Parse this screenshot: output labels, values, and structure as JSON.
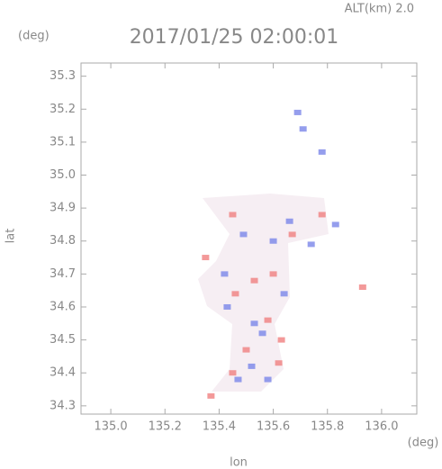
{
  "chart_data": {
    "type": "scatter",
    "title": "2017/01/25 02:00:01",
    "subtitle": "ALT(km) 2.0",
    "x_label": "lon",
    "y_label": "lat",
    "x_unit": "(deg)",
    "y_unit": "(deg)",
    "xlim": [
      134.89,
      136.13
    ],
    "ylim": [
      34.275,
      35.34
    ],
    "xticks": [
      {
        "value": 135,
        "label": "135.0"
      },
      135.2,
      135.4,
      135.6,
      135.8,
      {
        "value": 136,
        "label": "136.0"
      }
    ],
    "yticks": [
      34.3,
      34.4,
      34.5,
      34.6,
      34.7,
      34.8,
      34.9,
      {
        "value": 35,
        "label": "35.0"
      },
      35.1,
      35.2,
      35.3
    ],
    "series": [
      {
        "color": "#f08080",
        "x": [
          135.35,
          135.93,
          135.37,
          135.45,
          135.78,
          135.53,
          135.58,
          135.63,
          135.45,
          135.62,
          135.5,
          135.67,
          135.46,
          135.6
        ],
        "values": [
          34.75,
          34.66,
          34.33,
          34.88,
          34.88,
          34.68,
          34.56,
          34.5,
          34.4,
          34.43,
          34.47,
          34.82,
          34.64,
          34.7
        ]
      },
      {
        "color": "#7b86e8",
        "x": [
          135.69,
          135.71,
          135.78,
          135.47,
          135.43,
          135.52,
          135.56,
          135.49,
          135.66,
          135.74,
          135.6,
          135.42,
          135.53,
          135.64,
          135.58,
          135.83
        ],
        "values": [
          35.19,
          35.14,
          35.07,
          34.38,
          34.6,
          34.42,
          34.52,
          34.82,
          34.86,
          34.79,
          34.8,
          34.7,
          34.55,
          34.64,
          34.38,
          34.85
        ]
      }
    ]
  }
}
